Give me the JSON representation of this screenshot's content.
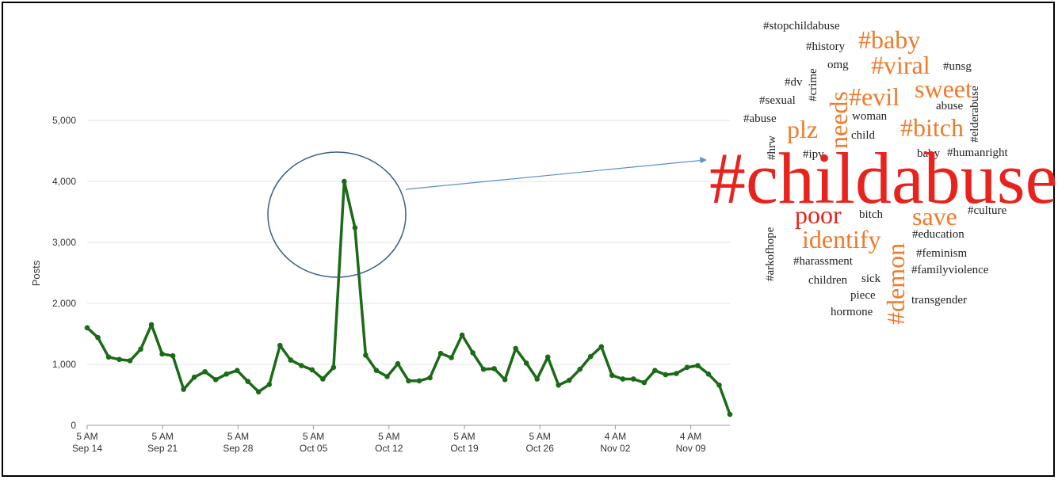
{
  "chart_data": {
    "type": "line",
    "ylabel": "Posts",
    "ylim": [
      0,
      5000
    ],
    "y_ticks": [
      0,
      1000,
      2000,
      3000,
      4000,
      5000
    ],
    "y_tick_labels": [
      "0",
      "1,000",
      "2,000",
      "3,000",
      "4,000",
      "5,000"
    ],
    "x_ticks": [
      {
        "top": "5 AM",
        "bottom": "Sep 14"
      },
      {
        "top": "5 AM",
        "bottom": "Sep 21"
      },
      {
        "top": "5 AM",
        "bottom": "Sep 28"
      },
      {
        "top": "5 AM",
        "bottom": "Oct 05"
      },
      {
        "top": "5 AM",
        "bottom": "Oct 12"
      },
      {
        "top": "5 AM",
        "bottom": "Oct 19"
      },
      {
        "top": "5 AM",
        "bottom": "Oct 26"
      },
      {
        "top": "4 AM",
        "bottom": "Nov 02"
      },
      {
        "top": "4 AM",
        "bottom": "Nov 09"
      }
    ],
    "series": [
      {
        "color": "#1a6a16",
        "values": [
          1600,
          1440,
          1120,
          1080,
          1060,
          1250,
          1650,
          1170,
          1140,
          590,
          790,
          880,
          750,
          840,
          900,
          720,
          550,
          670,
          1310,
          1070,
          980,
          910,
          760,
          950,
          4000,
          3240,
          1150,
          900,
          800,
          1010,
          730,
          730,
          780,
          1180,
          1110,
          1480,
          1190,
          920,
          930,
          750,
          1260,
          1020,
          760,
          1120,
          660,
          740,
          920,
          1130,
          1290,
          820,
          760,
          760,
          700,
          900,
          830,
          850,
          950,
          980,
          840,
          660,
          180
        ]
      }
    ],
    "annotation": "circle around peak with arrow to word cloud"
  },
  "word_cloud": {
    "colors": {
      "red": "#e8231d",
      "orange": "#f07a2a",
      "dark": "#222222"
    },
    "words": [
      {
        "text": "#stopchildabuse",
        "color": "dark"
      },
      {
        "text": "#history",
        "color": "dark"
      },
      {
        "text": "omg",
        "color": "dark"
      },
      {
        "text": "#crime",
        "color": "dark"
      },
      {
        "text": "#baby",
        "color": "orange"
      },
      {
        "text": "#viral",
        "color": "orange"
      },
      {
        "text": "#unsg",
        "color": "dark"
      },
      {
        "text": "#dv",
        "color": "dark"
      },
      {
        "text": "needs",
        "color": "orange"
      },
      {
        "text": "#evil",
        "color": "orange"
      },
      {
        "text": "sweet",
        "color": "orange"
      },
      {
        "text": "#elderabuse",
        "color": "dark"
      },
      {
        "text": "#sexual",
        "color": "dark"
      },
      {
        "text": "abuse",
        "color": "dark"
      },
      {
        "text": "woman",
        "color": "dark"
      },
      {
        "text": "#abuse",
        "color": "dark"
      },
      {
        "text": "plz",
        "color": "orange"
      },
      {
        "text": "child",
        "color": "dark"
      },
      {
        "text": "#bitch",
        "color": "orange"
      },
      {
        "text": "#hrw",
        "color": "dark"
      },
      {
        "text": "#ipv",
        "color": "dark"
      },
      {
        "text": "baby",
        "color": "dark"
      },
      {
        "text": "#humanright",
        "color": "dark"
      },
      {
        "text": "#childabuse",
        "color": "red"
      },
      {
        "text": "#arkofhope",
        "color": "dark"
      },
      {
        "text": "poor",
        "color": "red"
      },
      {
        "text": "bitch",
        "color": "dark"
      },
      {
        "text": "#demon",
        "color": "orange"
      },
      {
        "text": "save",
        "color": "orange"
      },
      {
        "text": "#culture",
        "color": "dark"
      },
      {
        "text": "identify",
        "color": "orange"
      },
      {
        "text": "#education",
        "color": "dark"
      },
      {
        "text": "#harassment",
        "color": "dark"
      },
      {
        "text": "#feminism",
        "color": "dark"
      },
      {
        "text": "children",
        "color": "dark"
      },
      {
        "text": "sick",
        "color": "dark"
      },
      {
        "text": "#familyviolence",
        "color": "dark"
      },
      {
        "text": "piece",
        "color": "dark"
      },
      {
        "text": "transgender",
        "color": "dark"
      },
      {
        "text": "hormone",
        "color": "dark"
      }
    ]
  }
}
